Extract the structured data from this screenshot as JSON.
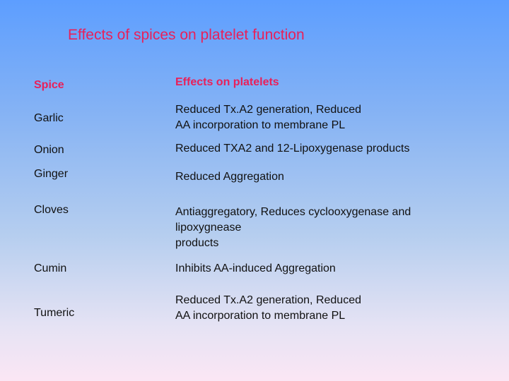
{
  "title": "Effects of spices on platelet function",
  "table": {
    "headers": {
      "spice": "Spice",
      "effect": "Effects on platelets"
    },
    "rows": [
      {
        "spice": "Garlic",
        "effect_lines": [
          "Reduced Tx.A2 generation, Reduced",
          "AA incorporation to membrane PL"
        ]
      },
      {
        "spice": "Onion",
        "effect_lines": [
          "Reduced TXA2 and 12-Lipoxygenase products"
        ]
      },
      {
        "spice": "Ginger",
        "effect_lines": [
          "Reduced Aggregation"
        ]
      },
      {
        "spice": "Cloves",
        "effect_lines": [
          "Antiaggregatory, Reduces cyclooxygenase and",
          "lipoxygnease",
          "products"
        ]
      },
      {
        "spice": "Cumin",
        "effect_lines": [
          "Inhibits AA-induced Aggregation"
        ]
      },
      {
        "spice": "Tumeric",
        "effect_lines": [
          "Reduced Tx.A2 generation, Reduced",
          "AA incorporation to membrane PL"
        ]
      }
    ]
  },
  "colors": {
    "title": "#e8205a",
    "header": "#e8205a",
    "text": "#111111",
    "background_top": "#5d9eff",
    "background_bottom": "#fbe6f4"
  }
}
